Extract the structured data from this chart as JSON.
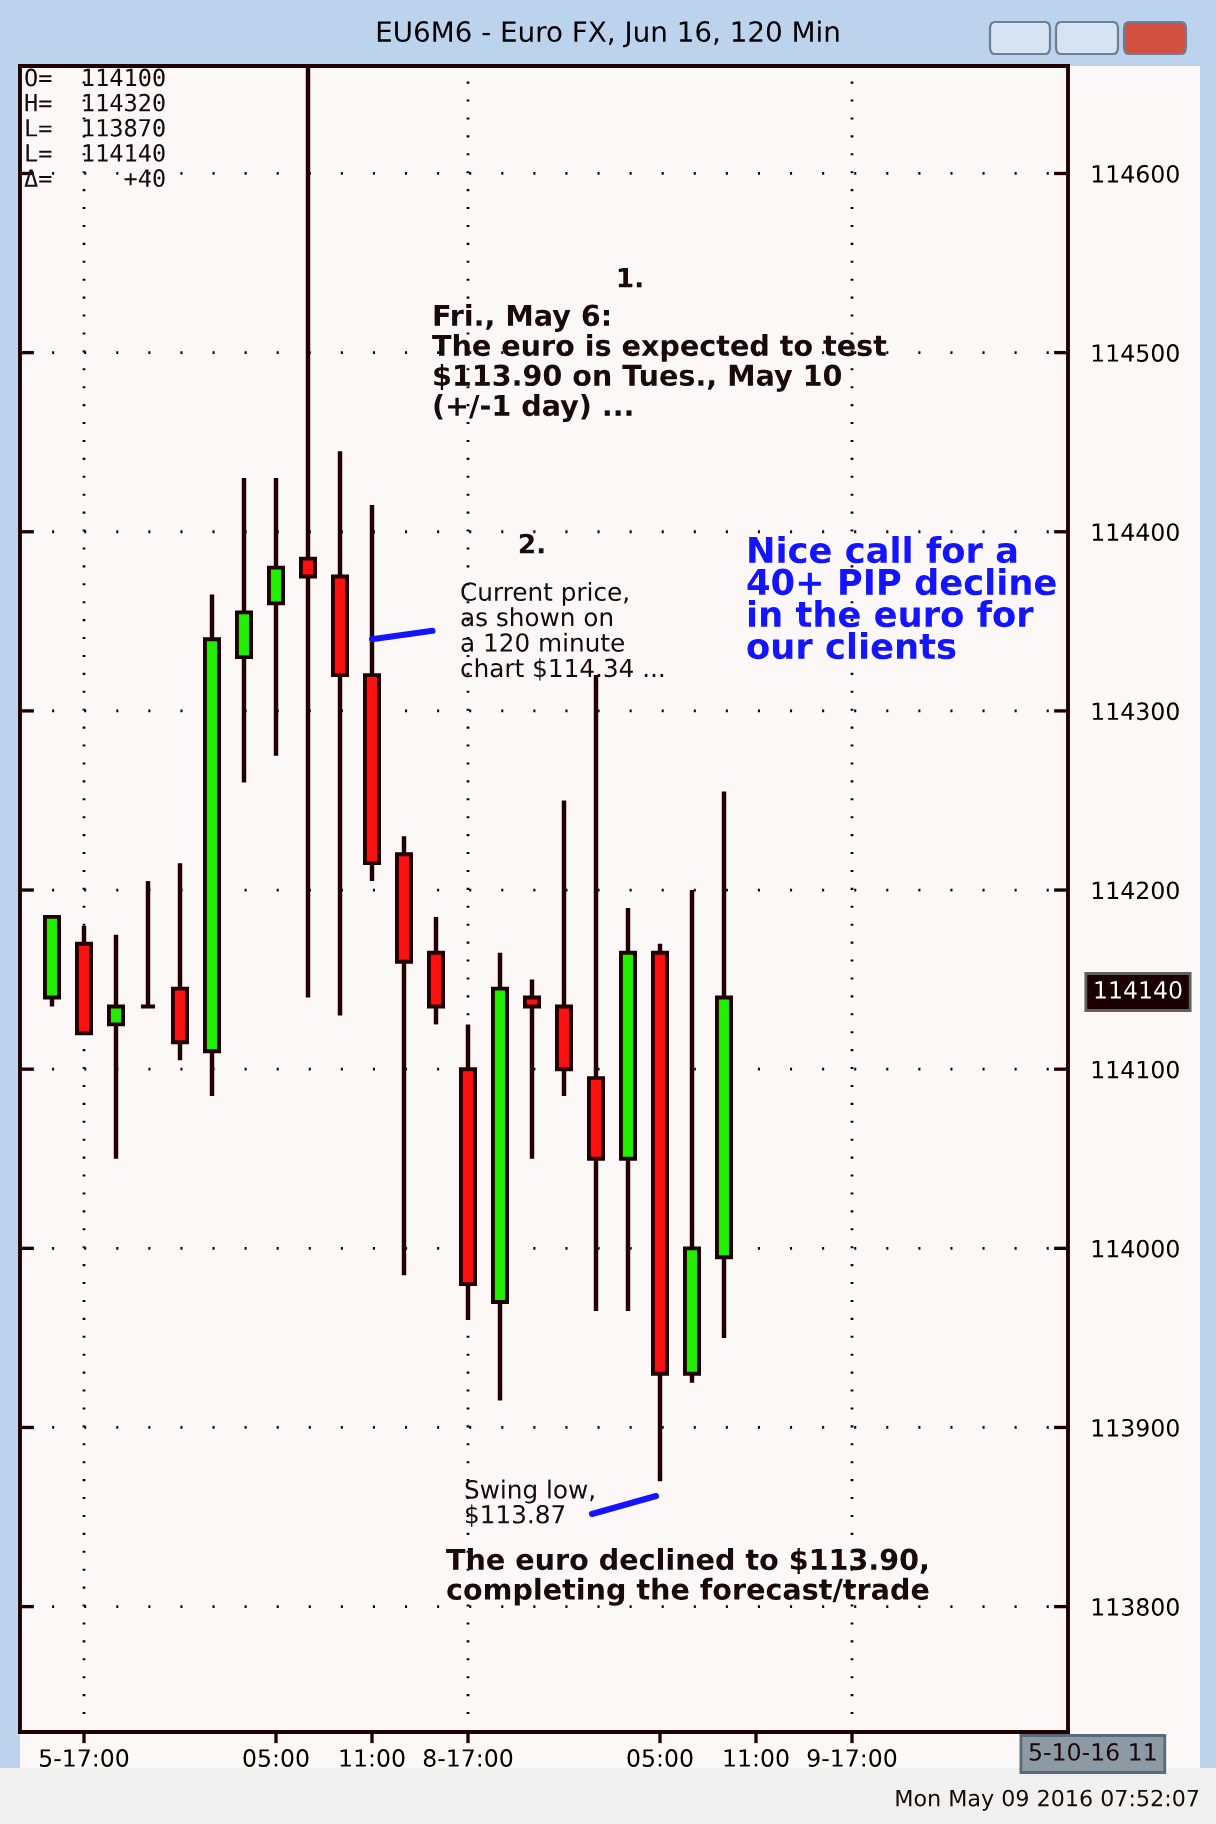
{
  "chart_data": {
    "type": "candlestick",
    "title": "EU6M6 - Euro FX, Jun 16, 120 Min",
    "categories": [
      null,
      "5-17:00",
      null,
      null,
      null,
      null,
      null,
      "05:00",
      null,
      null,
      "11:00",
      null,
      null,
      "8-17:00",
      null,
      null,
      null,
      null,
      null,
      "05:00",
      null,
      null,
      "11:00",
      null,
      null,
      "9-17:00",
      null,
      null,
      null,
      null,
      null,
      null
    ],
    "ohlc": [
      [
        114140,
        114185,
        114135,
        114185
      ],
      [
        114170,
        114180,
        114120,
        114120
      ],
      [
        114125,
        114175,
        114050,
        114135
      ],
      [
        114135,
        114205,
        114135,
        114135
      ],
      [
        114145,
        114215,
        114105,
        114115
      ],
      [
        114110,
        114365,
        114085,
        114340
      ],
      [
        114330,
        114430,
        114260,
        114355
      ],
      [
        114360,
        114430,
        114275,
        114380
      ],
      [
        114385,
        114660,
        114140,
        114375
      ],
      [
        114375,
        114445,
        114130,
        114320
      ],
      [
        114320,
        114415,
        114205,
        114215
      ],
      [
        114220,
        114230,
        113985,
        114160
      ],
      [
        114165,
        114185,
        114125,
        114135
      ],
      [
        114100,
        114125,
        113960,
        113980
      ],
      [
        113970,
        114165,
        113915,
        114145
      ],
      [
        114140,
        114150,
        114050,
        114135
      ],
      [
        114135,
        114250,
        114085,
        114100
      ],
      [
        114095,
        114320,
        113965,
        114050
      ],
      [
        114050,
        114190,
        113965,
        114165
      ],
      [
        114165,
        114170,
        113870,
        113930
      ],
      [
        113930,
        114200,
        113925,
        114000
      ],
      [
        113995,
        114255,
        113950,
        114140
      ],
      null,
      null,
      null,
      null,
      null,
      null,
      null,
      null,
      null,
      null
    ],
    "colors": [
      "#22ee00",
      "#ff1010",
      "#22ee00",
      "#200000",
      "#ff1010",
      "#22ee00",
      "#22ee00",
      "#22ee00",
      "#ff1010",
      "#ff1010",
      "#ff1010",
      "#ff1010",
      "#ff1010",
      "#ff1010",
      "#22ee00",
      "#ff1010",
      "#ff1010",
      "#ff1010",
      "#22ee00",
      "#ff1010",
      "#22ee00",
      "#22ee00",
      null,
      null,
      null,
      null,
      null,
      null,
      null,
      null,
      null,
      null
    ],
    "ylim": [
      113730,
      114660
    ],
    "yticks": [
      113800,
      113900,
      114000,
      114100,
      114200,
      114300,
      114400,
      114500,
      114600
    ],
    "grid": "y",
    "ref_lines": [
      {
        "axis": "x",
        "value": "5-17:00",
        "line_style": "dotted"
      },
      {
        "axis": "x",
        "value": "8-17:00",
        "line_style": "dotted"
      },
      {
        "axis": "x",
        "value": "9-17:00",
        "line_style": "dotted"
      }
    ],
    "annotations": [
      "O=  114100\nH=  114320\nL=  113870\nL=  114140\nΔ=     +40",
      "1.",
      "Fri., May 6:\nThe euro is expected to test\n$113.90 on Tues., May 10\n(+/-1 day) ...",
      "2.",
      {
        "text": "Current price,\nas shown on\na 120 minute\nchart $114.34 ...",
        "x": "11:00",
        "y": 114340
      },
      "Nice call for a\n40+ PIP decline\nin the euro for\nour clients",
      "Swing low,\n$113.87",
      "The euro declined to $113.90,\ncompleting the forecast/trade",
      "114140",
      "5-10-16 11",
      "Mon May 09 2016 07:52:07"
    ]
  }
}
